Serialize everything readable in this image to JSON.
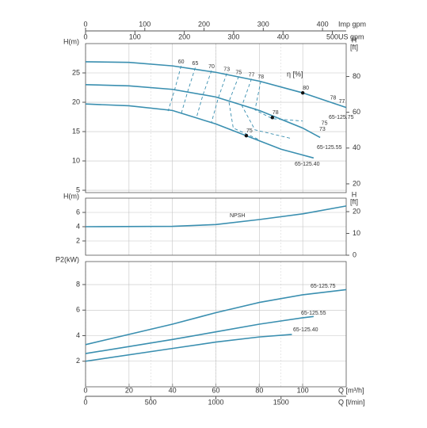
{
  "x_axes": {
    "q_m3h": {
      "label": "Q [m³/h]",
      "xlim": [
        0,
        120
      ],
      "xticks": [
        0,
        20,
        40,
        60,
        80,
        100
      ]
    },
    "q_lmin": {
      "label": "Q [l/min]",
      "xlim": [
        0,
        2000
      ],
      "xticks": [
        0,
        500,
        1000,
        1500
      ]
    },
    "imp_gpm": {
      "label": "Imp gpm",
      "xlim": [
        0,
        440
      ],
      "xticks": [
        0,
        100,
        200,
        300,
        400
      ]
    },
    "us_gpm": {
      "label": "US gpm",
      "xlim": [
        0,
        528
      ],
      "xticks": [
        0,
        100,
        200,
        300,
        400,
        500
      ]
    }
  },
  "chart_data": [
    {
      "type": "line",
      "ylabel": "H(m)",
      "y2label": "H",
      "y2unit": "[ft]",
      "efficiency_label": "η [%]",
      "ylim": [
        4.6,
        30
      ],
      "yticks": [
        5,
        10,
        15,
        20,
        25
      ],
      "y2lim": [
        15.1,
        98.4
      ],
      "y2ticks": [
        20,
        40,
        60,
        80
      ],
      "grid": true,
      "series": [
        {
          "name": "65-125.75",
          "color": "#3a8fb0",
          "x": [
            0,
            20,
            40,
            60,
            80,
            100,
            120
          ],
          "values": [
            26.9,
            26.8,
            26.2,
            25.1,
            23.6,
            21.6,
            19.1
          ]
        },
        {
          "name": "65-125.55",
          "color": "#3a8fb0",
          "x": [
            0,
            20,
            40,
            60,
            80,
            100,
            108
          ],
          "values": [
            23,
            22.8,
            22.2,
            20.9,
            18.6,
            15.6,
            14
          ]
        },
        {
          "name": "65-125.40",
          "color": "#3a8fb0",
          "x": [
            0,
            20,
            40,
            60,
            74,
            90,
            105
          ],
          "values": [
            19.7,
            19.4,
            18.6,
            16.3,
            14.3,
            12,
            10.5
          ]
        }
      ],
      "efficiency_lines": [
        {
          "label": "60",
          "x": [
            44,
            41,
            38
          ],
          "values": [
            26.2,
            22.1,
            18.5
          ]
        },
        {
          "label": "65",
          "x": [
            50.5,
            47,
            44
          ],
          "values": [
            25.9,
            21.8,
            18
          ]
        },
        {
          "label": "70",
          "x": [
            58,
            54,
            51
          ],
          "values": [
            25.4,
            21.2,
            17.3
          ]
        },
        {
          "label": "73",
          "x": [
            65,
            61,
            58
          ],
          "values": [
            24.9,
            20.6,
            16.6
          ]
        },
        {
          "label": "75",
          "x": [
            70.5,
            66,
            68,
            80
          ],
          "values": [
            24.4,
            20.1,
            15.6,
            13.6
          ]
        },
        {
          "label": "77",
          "x": [
            76.4,
            72,
            78,
            95
          ],
          "values": [
            24,
            19.4,
            15.3,
            13.8
          ]
        },
        {
          "label": "78",
          "x": [
            80.7,
            78,
            86,
            100
          ],
          "values": [
            23.6,
            18.7,
            17.2,
            16.8
          ]
        }
      ],
      "right_labels": [
        {
          "label": "78",
          "x": 114,
          "value": 20.7
        },
        {
          "label": "77",
          "x": 118,
          "value": 20.1
        },
        {
          "label": "75",
          "x": 110,
          "value": 16.4
        },
        {
          "label": "73",
          "x": 109,
          "value": 15.4
        }
      ],
      "duty_points": [
        {
          "label": "80",
          "x": 100,
          "value": 21.6
        },
        {
          "label": "78",
          "x": 86,
          "value": 17.4
        },
        {
          "label": "75",
          "x": 74,
          "value": 14.3
        }
      ]
    },
    {
      "type": "line",
      "ylabel": "H(m)",
      "y2label": "H",
      "y2unit": "[ft]",
      "ylim": [
        0,
        8
      ],
      "yticks": [
        2,
        4,
        6
      ],
      "y2lim": [
        0,
        26.2
      ],
      "y2ticks": [
        0,
        10,
        20
      ],
      "grid": true,
      "series": [
        {
          "name": "NPSH",
          "color": "#3a8fb0",
          "x": [
            0,
            40,
            60,
            80,
            100,
            120
          ],
          "values": [
            4,
            4.05,
            4.3,
            5,
            5.8,
            6.9
          ]
        }
      ]
    },
    {
      "type": "line",
      "ylabel": "P2(kW)",
      "ylim": [
        0,
        9.8
      ],
      "yticks": [
        2,
        4,
        6,
        8
      ],
      "grid": true,
      "series": [
        {
          "name": "65-125.75",
          "color": "#3a8fb0",
          "x": [
            0,
            40,
            60,
            80,
            100,
            120
          ],
          "values": [
            3.3,
            4.9,
            5.8,
            6.6,
            7.2,
            7.6
          ]
        },
        {
          "name": "65-125.55",
          "color": "#3a8fb0",
          "x": [
            0,
            40,
            60,
            80,
            100,
            105
          ],
          "values": [
            2.6,
            3.7,
            4.3,
            4.9,
            5.4,
            5.5
          ]
        },
        {
          "name": "65-125.40",
          "color": "#3a8fb0",
          "x": [
            0,
            40,
            60,
            80,
            95
          ],
          "values": [
            2,
            3,
            3.5,
            3.9,
            4.1
          ]
        }
      ]
    }
  ]
}
